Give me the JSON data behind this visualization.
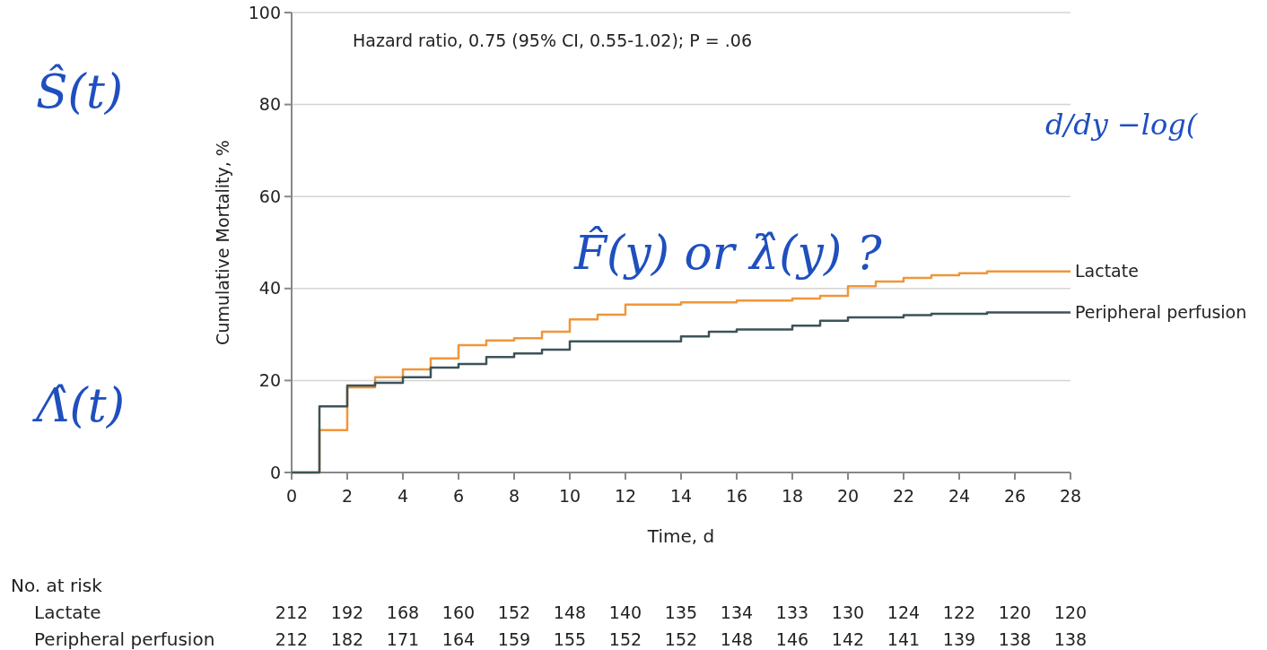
{
  "chart_data": {
    "type": "step",
    "xlabel": "Time, d",
    "ylabel": "Cumulative Mortality, %",
    "xlim": [
      0,
      28
    ],
    "ylim": [
      0,
      100
    ],
    "xticks": [
      0,
      2,
      4,
      6,
      8,
      10,
      12,
      14,
      16,
      18,
      20,
      22,
      24,
      26,
      28
    ],
    "yticks": [
      0,
      20,
      40,
      60,
      80,
      100
    ],
    "grid": "y",
    "series": [
      {
        "name": "Lactate",
        "color": "#f0963a",
        "x": [
          0,
          1,
          2,
          3,
          4,
          5,
          6,
          7,
          8,
          9,
          10,
          11,
          12,
          14,
          16,
          18,
          19,
          20,
          21,
          22,
          23,
          24,
          25,
          28
        ],
        "values": [
          0,
          9.2,
          18.5,
          20.7,
          22.4,
          24.8,
          27.7,
          28.7,
          29.2,
          30.6,
          33.3,
          34.3,
          36.5,
          37.0,
          37.4,
          37.8,
          38.4,
          40.5,
          41.5,
          42.3,
          42.9,
          43.3,
          43.7,
          43.7
        ]
      },
      {
        "name": "Peripheral perfusion",
        "color": "#3d5358",
        "x": [
          0,
          1,
          2,
          3,
          4,
          5,
          6,
          7,
          8,
          9,
          10,
          14,
          15,
          16,
          18,
          19,
          20,
          22,
          23,
          25,
          28
        ],
        "values": [
          0,
          14.4,
          18.9,
          19.5,
          20.7,
          22.8,
          23.6,
          25.1,
          25.9,
          26.7,
          28.5,
          29.6,
          30.6,
          31.1,
          31.9,
          33.0,
          33.7,
          34.2,
          34.5,
          34.8,
          34.8
        ]
      }
    ],
    "annotations": [
      "Hazard ratio, 0.75 (95% CI, 0.55-1.02); P = .06",
      "No. at risk",
      "Lactate",
      "212 192 168 160 152 148 140 135 134 133 130 124 122 120 120",
      "Peripheral perfusion",
      "212 182 171 164 159 155 152 152 148 146 142 141 139 138 138",
      "Ŝ(t)",
      "d/dy  −log(",
      "F̂(y)  or  λ̂(y)  ?",
      "Λ̂(t)"
    ]
  }
}
